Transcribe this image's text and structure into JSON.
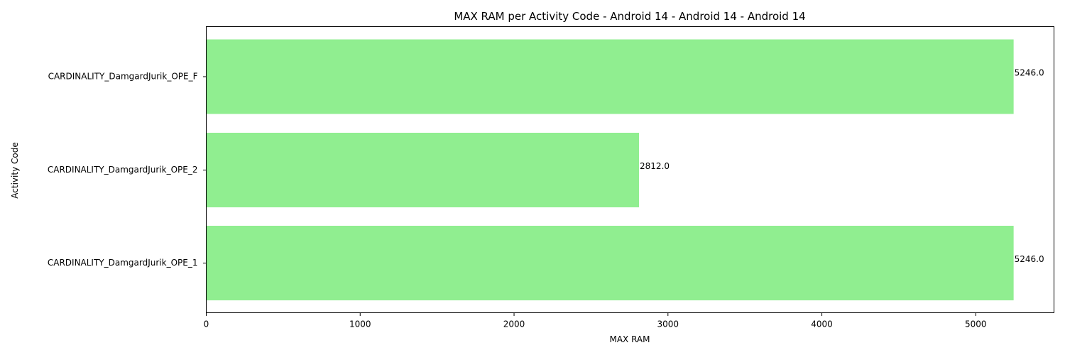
{
  "chart_data": {
    "type": "bar",
    "orientation": "horizontal",
    "title": "MAX RAM per Activity Code - Android 14 - Android 14 - Android 14",
    "xlabel": "MAX RAM",
    "ylabel": "Activity Code",
    "xlim": [
      0,
      5508.3
    ],
    "xticks": [
      0,
      1000,
      2000,
      3000,
      4000,
      5000
    ],
    "categories": [
      "CARDINALITY_DamgardJurik_OPE_F",
      "CARDINALITY_DamgardJurik_OPE_2",
      "CARDINALITY_DamgardJurik_OPE_1"
    ],
    "values": [
      5246.0,
      2812.0,
      5246.0
    ],
    "value_labels": [
      "5246.0",
      "2812.0",
      "5246.0"
    ],
    "bar_color": "#90ee90",
    "grid": false,
    "legend": "none"
  }
}
